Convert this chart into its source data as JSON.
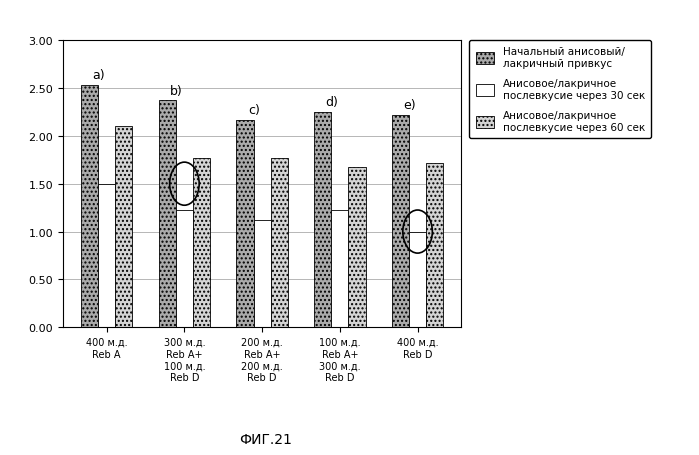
{
  "groups": [
    "a)",
    "b)",
    "c)",
    "d)",
    "e)"
  ],
  "xlabels": [
    "400 м.д.\nReb A",
    "300 м.д.\nReb A+\n100 м.д.\nReb D",
    "200 м.д.\nReb A+\n200 м.д.\nReb D",
    "100 м.д.\nReb A+\n300 м.д.\nReb D",
    "400 м.д.\nReb D"
  ],
  "series1": [
    2.53,
    2.37,
    2.17,
    2.25,
    2.22
  ],
  "series2": [
    1.5,
    1.22,
    1.12,
    1.22,
    1.0
  ],
  "series3": [
    2.1,
    1.77,
    1.77,
    1.67,
    1.72
  ],
  "color1": "#aaaaaa",
  "color2": "#ffffff",
  "color3": "#d4d4d4",
  "hatch1": "....",
  "hatch2": "",
  "hatch3": "....",
  "legend1": "Начальный анисовый/\nлакричный привкус",
  "legend2": "Анисовое/лакричное\nпослевкусие через 30 сек",
  "legend3": "Анисовое/лакричное\nпослевкусие через 60 сек",
  "ylim": [
    0.0,
    3.0
  ],
  "yticks": [
    0.0,
    0.5,
    1.0,
    1.5,
    2.0,
    2.5,
    3.0
  ],
  "caption": "ФИГ.21",
  "bar_width": 0.22,
  "circle1_group": 1,
  "circle1_bar": 1,
  "circle1_val": 1.5,
  "circle2_group": 4,
  "circle2_bar": 1,
  "circle2_val": 1.0,
  "group_labels_above_val": true
}
